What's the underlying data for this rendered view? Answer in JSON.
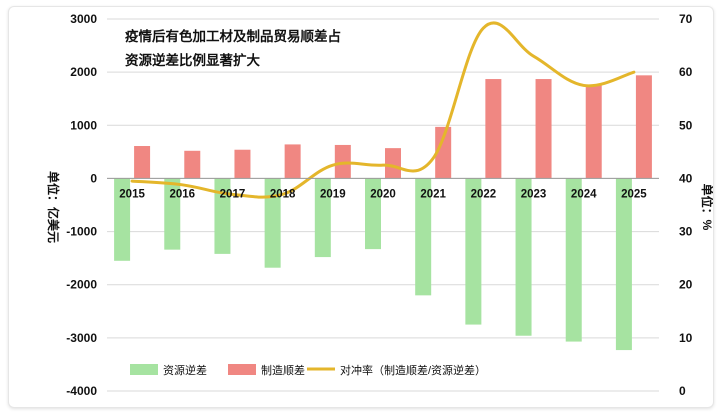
{
  "chart_data": {
    "type": "bar",
    "title_lines": [
      "疫情后有色加工材及制品贸易顺差占",
      "资源逆差比例显著扩大"
    ],
    "categories": [
      "2015",
      "2016",
      "2017",
      "2018",
      "2019",
      "2020",
      "2021",
      "2022",
      "2023",
      "2024",
      "2025"
    ],
    "ylabel_left": "单位：亿美元",
    "ylabel_right": "单位：%",
    "ylim_left": [
      -4000,
      3000
    ],
    "ylim_right": [
      0,
      70
    ],
    "yticks_left": [
      3000,
      2000,
      1000,
      0,
      -1000,
      -2000,
      -3000,
      -4000
    ],
    "yticks_right": [
      70,
      60,
      50,
      40,
      30,
      20,
      10,
      0
    ],
    "series": [
      {
        "name": "资源逆差",
        "type": "bar",
        "axis": "left",
        "color": "#a6e3a1",
        "values": [
          -1550,
          -1340,
          -1420,
          -1680,
          -1480,
          -1330,
          -2200,
          -2750,
          -2960,
          -3070,
          -3230
        ]
      },
      {
        "name": "制造顺差",
        "type": "bar",
        "axis": "left",
        "color": "#f08782",
        "values": [
          610,
          520,
          540,
          640,
          630,
          570,
          970,
          1870,
          1870,
          1760,
          1940
        ]
      },
      {
        "name": "对冲率（制造顺差/资源逆差）",
        "type": "line",
        "axis": "right",
        "color": "#e4b62b",
        "values": [
          39.5,
          38.8,
          37.0,
          37.0,
          42.5,
          42.5,
          43.8,
          68.3,
          63.0,
          57.5,
          60.0
        ]
      }
    ],
    "legend_position": "bottom"
  }
}
